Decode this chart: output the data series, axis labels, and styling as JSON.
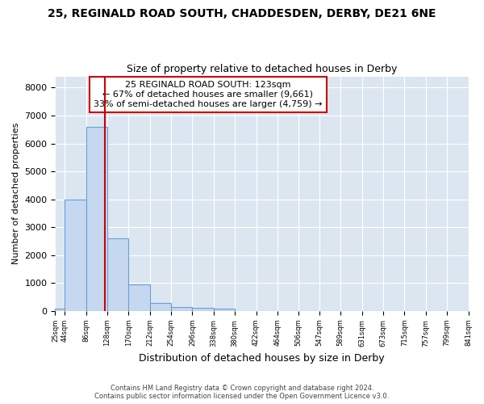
{
  "title_line1": "25, REGINALD ROAD SOUTH, CHADDESDEN, DERBY, DE21 6NE",
  "title_line2": "Size of property relative to detached houses in Derby",
  "xlabel": "Distribution of detached houses by size in Derby",
  "ylabel": "Number of detached properties",
  "footer1": "Contains HM Land Registry data © Crown copyright and database right 2024.",
  "footer2": "Contains public sector information licensed under the Open Government Licence v3.0.",
  "bin_edges": [
    25,
    44,
    86,
    128,
    170,
    212,
    254,
    296,
    338,
    380,
    422,
    464,
    506,
    547,
    589,
    631,
    673,
    715,
    757,
    799,
    841
  ],
  "bar_values": [
    80,
    3980,
    6590,
    2610,
    960,
    300,
    130,
    110,
    90,
    0,
    0,
    0,
    0,
    0,
    0,
    0,
    0,
    0,
    0,
    0
  ],
  "bar_color": "#c5d8f0",
  "bar_edge_color": "#6a9fd8",
  "fig_bg_color": "#ffffff",
  "plot_bg_color": "#dce6f0",
  "grid_color": "#ffffff",
  "property_size": 123,
  "vline_color": "#cc0000",
  "annotation_line1": "25 REGINALD ROAD SOUTH: 123sqm",
  "annotation_line2": "← 67% of detached houses are smaller (9,661)",
  "annotation_line3": "33% of semi-detached houses are larger (4,759) →",
  "annotation_box_color": "#cc0000",
  "ylim": [
    0,
    8400
  ],
  "yticks": [
    0,
    1000,
    2000,
    3000,
    4000,
    5000,
    6000,
    7000,
    8000
  ]
}
